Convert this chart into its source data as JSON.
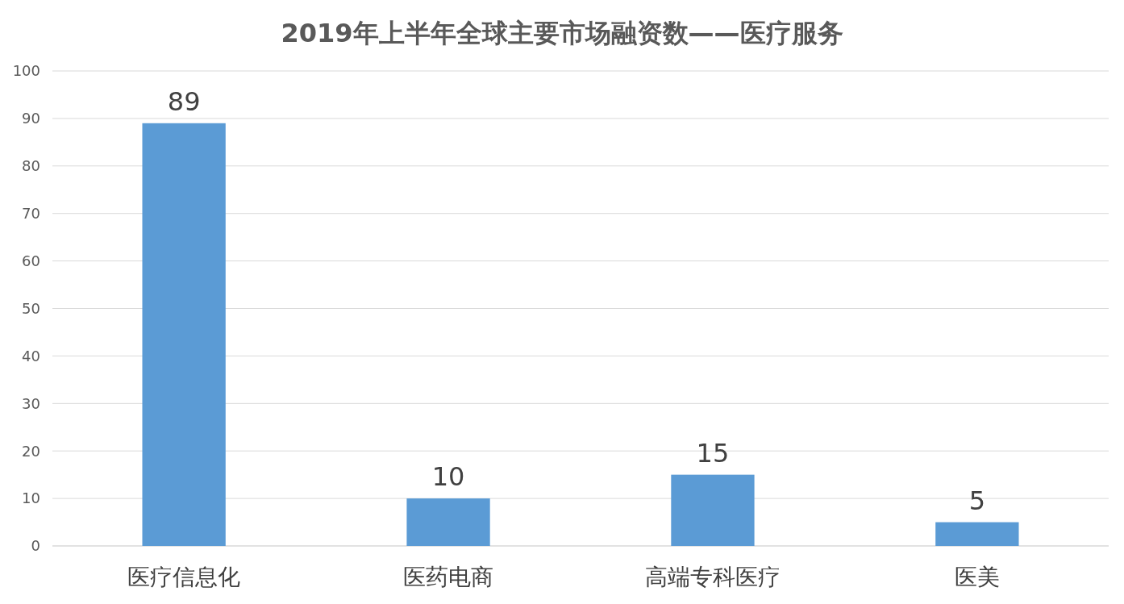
{
  "chart_data": {
    "type": "bar",
    "title": "2019年上半年全球主要市场融资数——医疗服务",
    "categories": [
      "医疗信息化",
      "医药电商",
      "高端专科医疗",
      "医美"
    ],
    "values": [
      89,
      10,
      15,
      5
    ],
    "color": "#5b9bd5",
    "ylim": [
      0,
      100
    ],
    "yticks": [
      0,
      10,
      20,
      30,
      40,
      50,
      60,
      70,
      80,
      90,
      100
    ],
    "grid": "y",
    "data_labels": true
  }
}
